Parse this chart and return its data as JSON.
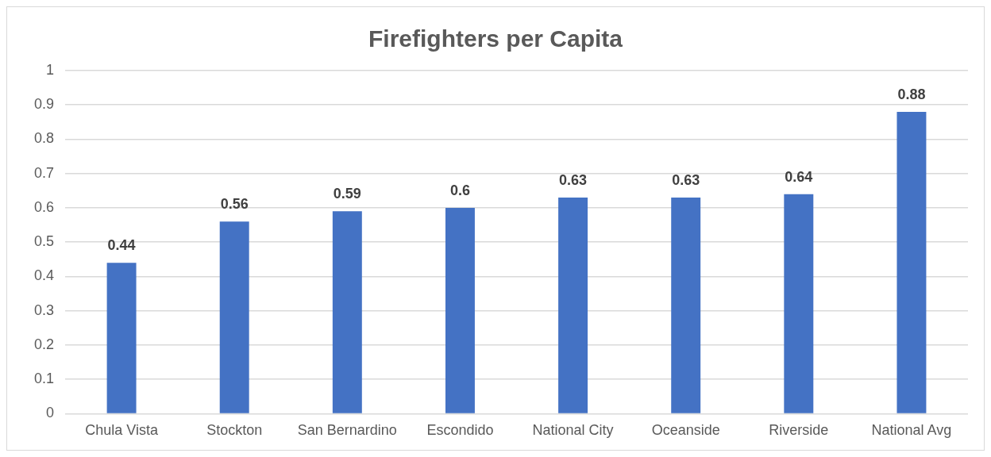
{
  "chart_data": {
    "type": "bar",
    "title": "Firefighters per Capita",
    "categories": [
      "Chula Vista",
      "Stockton",
      "San Bernardino",
      "Escondido",
      "National City",
      "Oceanside",
      "Riverside",
      "National Avg"
    ],
    "values": [
      0.44,
      0.56,
      0.59,
      0.6,
      0.63,
      0.63,
      0.64,
      0.88
    ],
    "color": "#4472c4",
    "ylim": [
      0,
      1
    ],
    "yticks": [
      0,
      0.1,
      0.2,
      0.3,
      0.4,
      0.5,
      0.6,
      0.7,
      0.8,
      0.9,
      1
    ],
    "grid": "y",
    "data_labels": true,
    "legend": false
  }
}
